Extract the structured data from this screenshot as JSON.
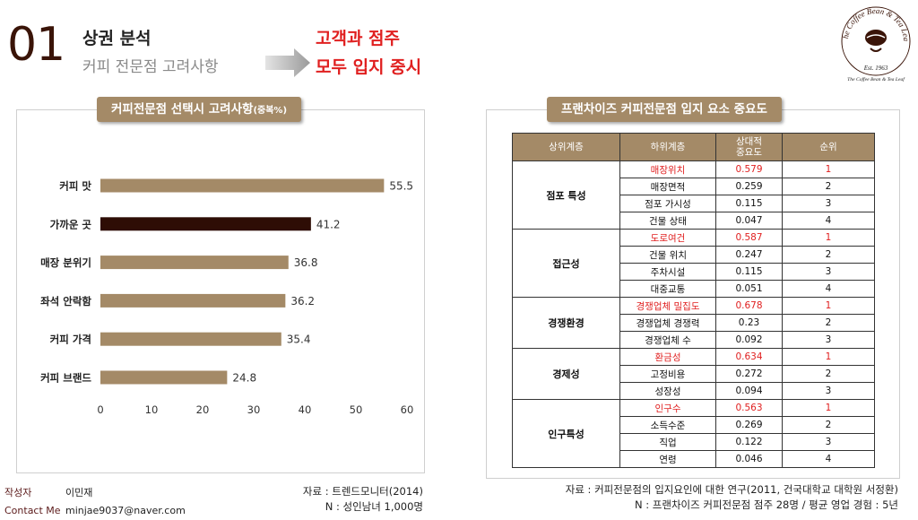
{
  "header": {
    "number": "01",
    "title": "상권 분석",
    "subtitle": "커피 전문점 고려사항",
    "highlight_line1": "고객과 점주",
    "highlight_line2": "모두 입지 중시"
  },
  "logo": {
    "name": "The Coffee Bean & Tea Leaf",
    "est": "Est. 1963",
    "tagline": "The Coffee Bean & Tea Leaf"
  },
  "left_panel": {
    "caption": "커피전문점 선택시 고려사항",
    "caption_note": "(중복%)"
  },
  "right_panel": {
    "caption": "프랜차이즈 커피전문점 입지 요소 중요도"
  },
  "chart_data": [
    {
      "type": "bar",
      "orientation": "horizontal",
      "categories": [
        "커피 맛",
        "가까운 곳",
        "매장 분위기",
        "좌석 안락함",
        "커피 가격",
        "커피 브랜드"
      ],
      "values": [
        55.5,
        41.2,
        36.8,
        36.2,
        35.4,
        24.8
      ],
      "highlight_index": 1,
      "xlim": [
        0,
        60
      ],
      "xticks": [
        0,
        10,
        20,
        30,
        40,
        50,
        60
      ],
      "grid": false,
      "colors": {
        "bar": "#a48a67",
        "highlight": "#2e0d05"
      }
    },
    {
      "type": "table",
      "headers": [
        "상위계층",
        "하위계층",
        "상대적\n중요도",
        "순위"
      ],
      "groups": [
        {
          "name": "점포 특성",
          "rows": [
            {
              "sub": "매장위치",
              "value": "0.579",
              "rank": "1"
            },
            {
              "sub": "매장면적",
              "value": "0.259",
              "rank": "2"
            },
            {
              "sub": "점포 가시성",
              "value": "0.115",
              "rank": "3"
            },
            {
              "sub": "건물 상태",
              "value": "0.047",
              "rank": "4"
            }
          ]
        },
        {
          "name": "접근성",
          "rows": [
            {
              "sub": "도로여건",
              "value": "0.587",
              "rank": "1"
            },
            {
              "sub": "건물 위치",
              "value": "0.247",
              "rank": "2"
            },
            {
              "sub": "주차시설",
              "value": "0.115",
              "rank": "3"
            },
            {
              "sub": "대중교통",
              "value": "0.051",
              "rank": "4"
            }
          ]
        },
        {
          "name": "경쟁환경",
          "rows": [
            {
              "sub": "경쟁업체 밀집도",
              "value": "0.678",
              "rank": "1"
            },
            {
              "sub": "경쟁업체 경쟁력",
              "value": "0.23",
              "rank": "2"
            },
            {
              "sub": "경쟁업체 수",
              "value": "0.092",
              "rank": "3"
            }
          ]
        },
        {
          "name": "경제성",
          "rows": [
            {
              "sub": "환금성",
              "value": "0.634",
              "rank": "1"
            },
            {
              "sub": "고정비용",
              "value": "0.272",
              "rank": "2"
            },
            {
              "sub": "성장성",
              "value": "0.094",
              "rank": "3"
            }
          ]
        },
        {
          "name": "인구특성",
          "rows": [
            {
              "sub": "인구수",
              "value": "0.563",
              "rank": "1"
            },
            {
              "sub": "소득수준",
              "value": "0.269",
              "rank": "2"
            },
            {
              "sub": "직업",
              "value": "0.122",
              "rank": "3"
            },
            {
              "sub": "연령",
              "value": "0.046",
              "rank": "4"
            }
          ]
        }
      ],
      "colors": {
        "header": "#a48a67",
        "top_rank": "#e02020"
      }
    }
  ],
  "source_left": {
    "line1": "자료 : 트렌드모니터(2014)",
    "line2": "N : 성인남녀 1,000명"
  },
  "source_right": {
    "line1": "자료 : 커피전문점의 입지요인에 대한 연구(2011, 건국대학교 대학원 서정환)",
    "line2": "N : 프랜차이즈 커피전문점 점주 28명 / 평균 영업 경험 : 5년"
  },
  "author": {
    "label_author": "작성자",
    "name": "이민재",
    "label_contact": "Contact Me",
    "email": "minjae9037@naver.com"
  }
}
